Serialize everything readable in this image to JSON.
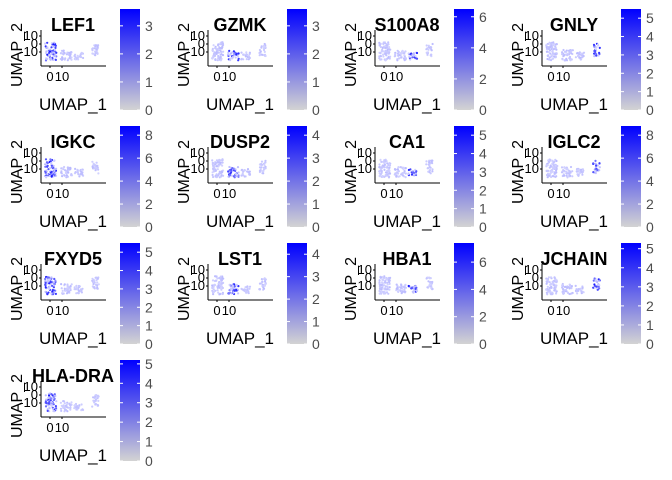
{
  "chart_data": {
    "type": "scatter",
    "xlabel": "UMAP_1",
    "ylabel": "UMAP_2",
    "x_ticks": [
      "0",
      "10"
    ],
    "y_ticks": [
      "10",
      "0",
      "-10"
    ],
    "colorscale": {
      "low": "#d3d3d3",
      "high": "#0000ff"
    },
    "panels": [
      {
        "title": "LEF1",
        "colorbar": {
          "max": 3.6,
          "ticks": [
            0,
            1,
            2,
            3
          ]
        }
      },
      {
        "title": "GZMK",
        "colorbar": {
          "max": 3.6,
          "ticks": [
            0,
            1,
            2,
            3
          ]
        }
      },
      {
        "title": "S100A8",
        "colorbar": {
          "max": 6.5,
          "ticks": [
            0,
            2,
            4,
            6
          ]
        }
      },
      {
        "title": "GNLY",
        "colorbar": {
          "max": 5.5,
          "ticks": [
            0,
            1,
            2,
            3,
            4,
            5
          ]
        }
      },
      {
        "title": "IGKC",
        "colorbar": {
          "max": 8.8,
          "ticks": [
            0,
            2,
            4,
            6,
            8
          ]
        }
      },
      {
        "title": "DUSP2",
        "colorbar": {
          "max": 4.4,
          "ticks": [
            0,
            1,
            2,
            3,
            4
          ]
        }
      },
      {
        "title": "CA1",
        "colorbar": {
          "max": 5.5,
          "ticks": [
            0,
            1,
            2,
            3,
            4,
            5
          ]
        }
      },
      {
        "title": "IGLC2",
        "colorbar": {
          "max": 8.8,
          "ticks": [
            0,
            2,
            4,
            6,
            8
          ]
        }
      },
      {
        "title": "FXYD5",
        "colorbar": {
          "max": 5.5,
          "ticks": [
            0,
            1,
            2,
            3,
            4,
            5
          ]
        }
      },
      {
        "title": "LST1",
        "colorbar": {
          "max": 4.5,
          "ticks": [
            0,
            1,
            2,
            3,
            4
          ]
        }
      },
      {
        "title": "HBA1",
        "colorbar": {
          "max": 7.4,
          "ticks": [
            0,
            2,
            4,
            6
          ]
        }
      },
      {
        "title": "JCHAIN",
        "colorbar": {
          "max": 5.3,
          "ticks": [
            0,
            1,
            2,
            3,
            4,
            5
          ]
        }
      },
      {
        "title": "HLA-DRA",
        "colorbar": {
          "max": 5.2,
          "ticks": [
            0,
            1,
            2,
            3,
            4,
            5
          ]
        }
      }
    ]
  }
}
